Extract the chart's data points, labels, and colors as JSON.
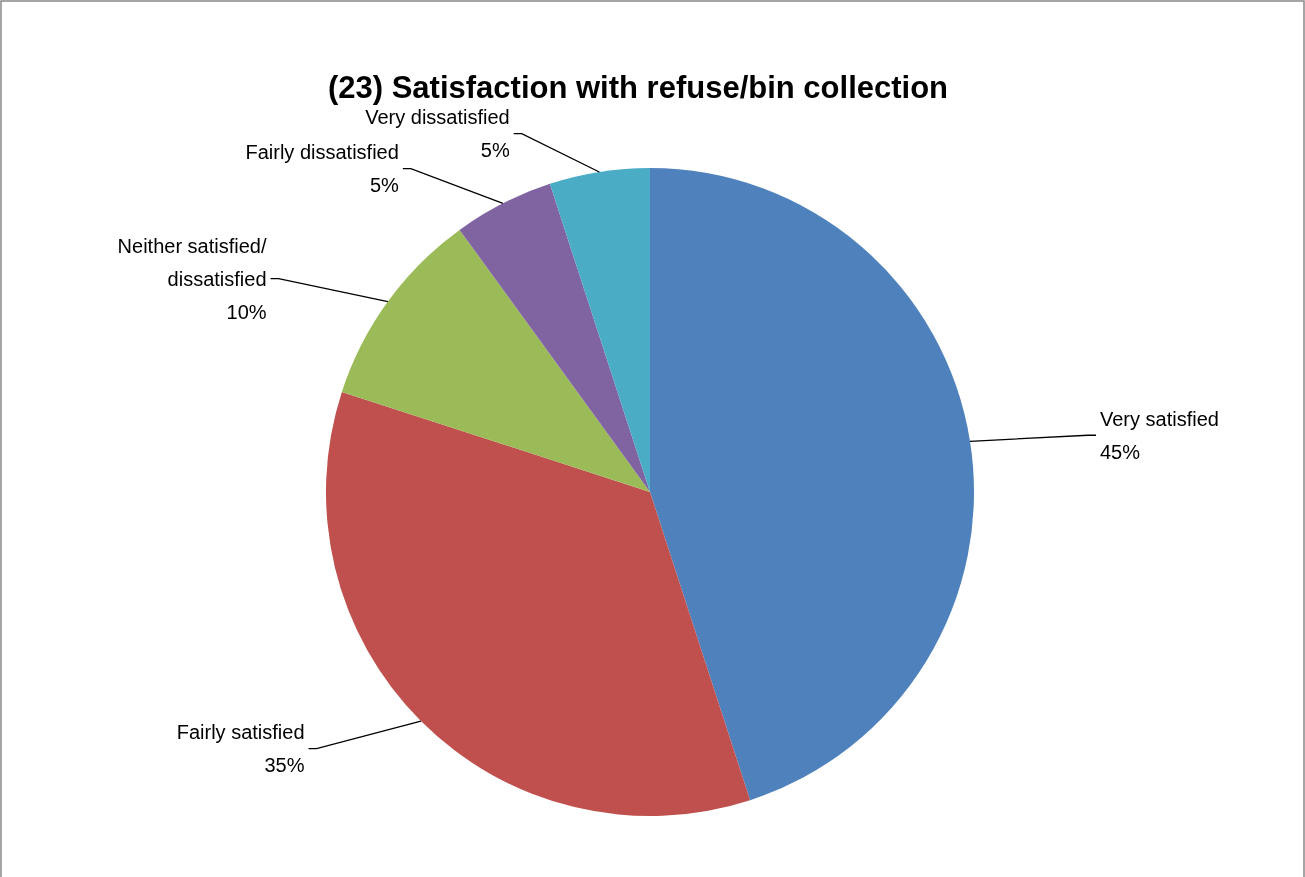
{
  "chart_data": {
    "type": "pie",
    "title": "(23) Satisfaction with refuse/bin collection",
    "categories": [
      "Very satisfied",
      "Fairly satisfied",
      "Neither satisfied/dissatisfied",
      "Fairly dissatisfied",
      "Very dissatisfied"
    ],
    "values": [
      45,
      35,
      10,
      5,
      5
    ],
    "colors": [
      "#4f81bd",
      "#c0504d",
      "#9bbb59",
      "#8064a2",
      "#4bacc6"
    ],
    "value_labels": [
      "45%",
      "35%",
      "10%",
      "5%",
      "5%"
    ]
  }
}
